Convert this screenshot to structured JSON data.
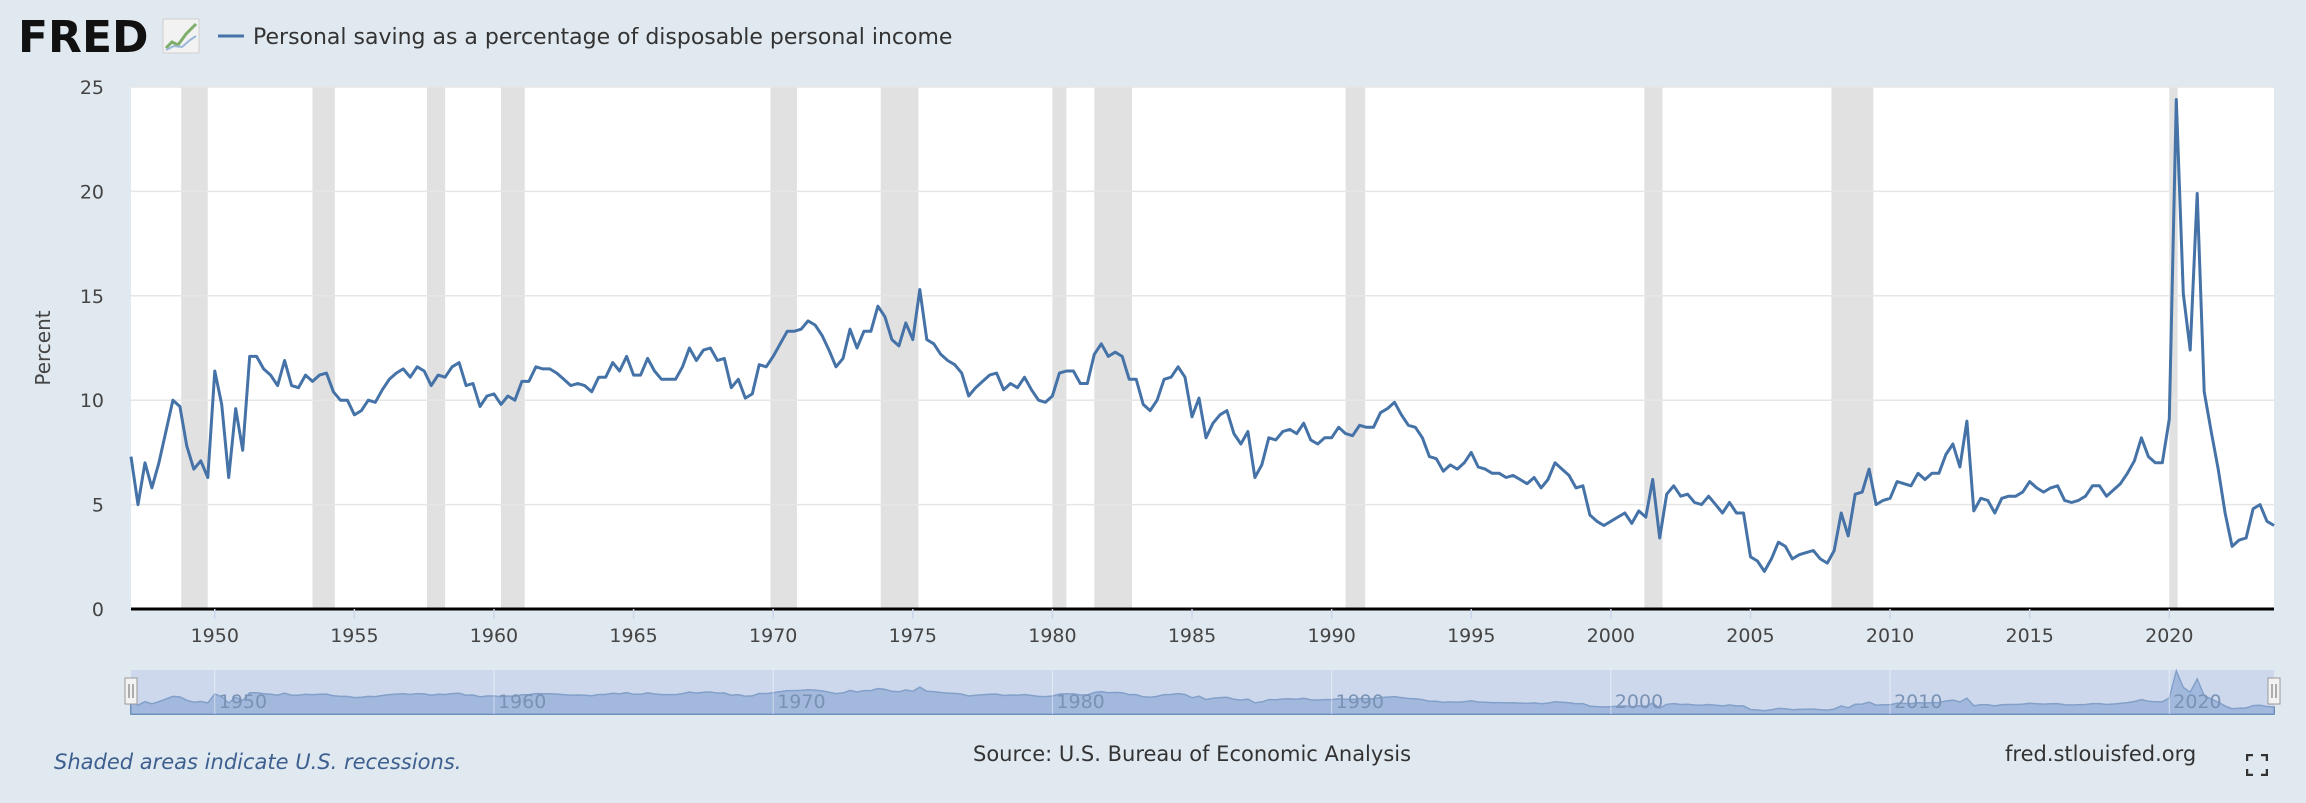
{
  "header": {
    "logo_text": "FRED",
    "logo_icon": "fred-graph-icon",
    "legend_label": "Personal saving as a percentage of disposable personal income"
  },
  "footer": {
    "recession_note": "Shaded areas indicate U.S. recessions.",
    "source": "Source: U.S. Bureau of Economic Analysis",
    "site": "fred.stlouisfed.org",
    "fullscreen_icon": "fullscreen-icon"
  },
  "colors": {
    "series": "#4572a7",
    "recession": "#e1e1e1",
    "background": "#e1e9f0",
    "plot_bg": "#ffffff",
    "navigator": "#b7c7e6"
  },
  "chart_data": {
    "type": "line",
    "title": "",
    "xlabel": "",
    "ylabel": "Percent",
    "ylim": [
      0,
      25
    ],
    "yticks": [
      "0",
      "5",
      "10",
      "15",
      "20",
      "25"
    ],
    "xlim": [
      1947.0,
      2023.75
    ],
    "xticks": [
      "1950",
      "1955",
      "1960",
      "1965",
      "1970",
      "1975",
      "1980",
      "1985",
      "1990",
      "1995",
      "2000",
      "2005",
      "2010",
      "2015",
      "2020"
    ],
    "navigator_ticks": [
      "1950",
      "1960",
      "1970",
      "1980",
      "1990",
      "2000",
      "2010",
      "2020"
    ],
    "grid": true,
    "legend": "top-left",
    "recessions": [
      [
        1948.8,
        1949.75
      ],
      [
        1953.5,
        1954.3
      ],
      [
        1957.6,
        1958.25
      ],
      [
        1960.25,
        1961.1
      ],
      [
        1969.9,
        1970.85
      ],
      [
        1973.85,
        1975.2
      ],
      [
        1980.0,
        1980.5
      ],
      [
        1981.5,
        1982.85
      ],
      [
        1990.5,
        1991.2
      ],
      [
        2001.2,
        2001.85
      ],
      [
        2007.9,
        2009.4
      ],
      [
        2020.0,
        2020.3
      ]
    ],
    "series": [
      {
        "name": "Personal saving as a percentage of disposable personal income",
        "x": [
          1947.0,
          1947.25,
          1947.5,
          1947.75,
          1948.0,
          1948.25,
          1948.5,
          1948.75,
          1949.0,
          1949.25,
          1949.5,
          1949.75,
          1950.0,
          1950.25,
          1950.5,
          1950.75,
          1951.0,
          1951.25,
          1951.5,
          1951.75,
          1952.0,
          1952.25,
          1952.5,
          1952.75,
          1953.0,
          1953.25,
          1953.5,
          1953.75,
          1954.0,
          1954.25,
          1954.5,
          1954.75,
          1955.0,
          1955.25,
          1955.5,
          1955.75,
          1956.0,
          1956.25,
          1956.5,
          1956.75,
          1957.0,
          1957.25,
          1957.5,
          1957.75,
          1958.0,
          1958.25,
          1958.5,
          1958.75,
          1959.0,
          1959.25,
          1959.5,
          1959.75,
          1960.0,
          1960.25,
          1960.5,
          1960.75,
          1961.0,
          1961.25,
          1961.5,
          1961.75,
          1962.0,
          1962.25,
          1962.5,
          1962.75,
          1963.0,
          1963.25,
          1963.5,
          1963.75,
          1964.0,
          1964.25,
          1964.5,
          1964.75,
          1965.0,
          1965.25,
          1965.5,
          1965.75,
          1966.0,
          1966.25,
          1966.5,
          1966.75,
          1967.0,
          1967.25,
          1967.5,
          1967.75,
          1968.0,
          1968.25,
          1968.5,
          1968.75,
          1969.0,
          1969.25,
          1969.5,
          1969.75,
          1970.0,
          1970.25,
          1970.5,
          1970.75,
          1971.0,
          1971.25,
          1971.5,
          1971.75,
          1972.0,
          1972.25,
          1972.5,
          1972.75,
          1973.0,
          1973.25,
          1973.5,
          1973.75,
          1974.0,
          1974.25,
          1974.5,
          1974.75,
          1975.0,
          1975.25,
          1975.5,
          1975.75,
          1976.0,
          1976.25,
          1976.5,
          1976.75,
          1977.0,
          1977.25,
          1977.5,
          1977.75,
          1978.0,
          1978.25,
          1978.5,
          1978.75,
          1979.0,
          1979.25,
          1979.5,
          1979.75,
          1980.0,
          1980.25,
          1980.5,
          1980.75,
          1981.0,
          1981.25,
          1981.5,
          1981.75,
          1982.0,
          1982.25,
          1982.5,
          1982.75,
          1983.0,
          1983.25,
          1983.5,
          1983.75,
          1984.0,
          1984.25,
          1984.5,
          1984.75,
          1985.0,
          1985.25,
          1985.5,
          1985.75,
          1986.0,
          1986.25,
          1986.5,
          1986.75,
          1987.0,
          1987.25,
          1987.5,
          1987.75,
          1988.0,
          1988.25,
          1988.5,
          1988.75,
          1989.0,
          1989.25,
          1989.5,
          1989.75,
          1990.0,
          1990.25,
          1990.5,
          1990.75,
          1991.0,
          1991.25,
          1991.5,
          1991.75,
          1992.0,
          1992.25,
          1992.5,
          1992.75,
          1993.0,
          1993.25,
          1993.5,
          1993.75,
          1994.0,
          1994.25,
          1994.5,
          1994.75,
          1995.0,
          1995.25,
          1995.5,
          1995.75,
          1996.0,
          1996.25,
          1996.5,
          1996.75,
          1997.0,
          1997.25,
          1997.5,
          1997.75,
          1998.0,
          1998.25,
          1998.5,
          1998.75,
          1999.0,
          1999.25,
          1999.5,
          1999.75,
          2000.0,
          2000.25,
          2000.5,
          2000.75,
          2001.0,
          2001.25,
          2001.5,
          2001.75,
          2002.0,
          2002.25,
          2002.5,
          2002.75,
          2003.0,
          2003.25,
          2003.5,
          2003.75,
          2004.0,
          2004.25,
          2004.5,
          2004.75,
          2005.0,
          2005.25,
          2005.5,
          2005.75,
          2006.0,
          2006.25,
          2006.5,
          2006.75,
          2007.0,
          2007.25,
          2007.5,
          2007.75,
          2008.0,
          2008.25,
          2008.5,
          2008.75,
          2009.0,
          2009.25,
          2009.5,
          2009.75,
          2010.0,
          2010.25,
          2010.5,
          2010.75,
          2011.0,
          2011.25,
          2011.5,
          2011.75,
          2012.0,
          2012.25,
          2012.5,
          2012.75,
          2013.0,
          2013.25,
          2013.5,
          2013.75,
          2014.0,
          2014.25,
          2014.5,
          2014.75,
          2015.0,
          2015.25,
          2015.5,
          2015.75,
          2016.0,
          2016.25,
          2016.5,
          2016.75,
          2017.0,
          2017.25,
          2017.5,
          2017.75,
          2018.0,
          2018.25,
          2018.5,
          2018.75,
          2019.0,
          2019.25,
          2019.5,
          2019.75,
          2020.0,
          2020.25,
          2020.5,
          2020.75,
          2021.0,
          2021.25,
          2021.5,
          2021.75,
          2022.0,
          2022.25,
          2022.5,
          2022.75,
          2023.0,
          2023.25,
          2023.5,
          2023.75
        ],
        "values": [
          7.3,
          5.0,
          7.0,
          5.8,
          7.0,
          8.5,
          10.0,
          9.7,
          7.8,
          6.7,
          7.1,
          6.3,
          11.4,
          9.8,
          6.3,
          9.6,
          7.6,
          12.1,
          12.1,
          11.5,
          11.2,
          10.7,
          11.9,
          10.7,
          10.6,
          11.2,
          10.9,
          11.2,
          11.3,
          10.4,
          10.0,
          10.0,
          9.3,
          9.5,
          10.0,
          9.9,
          10.5,
          11.0,
          11.3,
          11.5,
          11.1,
          11.6,
          11.4,
          10.7,
          11.2,
          11.1,
          11.6,
          11.8,
          10.7,
          10.8,
          9.7,
          10.2,
          10.3,
          9.8,
          10.2,
          10.0,
          10.9,
          10.9,
          11.6,
          11.5,
          11.5,
          11.3,
          11.0,
          10.7,
          10.8,
          10.7,
          10.4,
          11.1,
          11.1,
          11.8,
          11.4,
          12.1,
          11.2,
          11.2,
          12.0,
          11.4,
          11.0,
          11.0,
          11.0,
          11.6,
          12.5,
          11.9,
          12.4,
          12.5,
          11.9,
          12.0,
          10.6,
          11.0,
          10.1,
          10.3,
          11.7,
          11.6,
          12.1,
          12.7,
          13.3,
          13.3,
          13.4,
          13.8,
          13.6,
          13.1,
          12.4,
          11.6,
          12.0,
          13.4,
          12.5,
          13.3,
          13.3,
          14.5,
          14.0,
          12.9,
          12.6,
          13.7,
          12.9,
          15.3,
          12.9,
          12.7,
          12.2,
          11.9,
          11.7,
          11.3,
          10.2,
          10.6,
          10.9,
          11.2,
          11.3,
          10.5,
          10.8,
          10.6,
          11.1,
          10.5,
          10.0,
          9.9,
          10.2,
          11.3,
          11.4,
          11.4,
          10.8,
          10.8,
          12.2,
          12.7,
          12.1,
          12.3,
          12.1,
          11.0,
          11.0,
          9.8,
          9.5,
          10.0,
          11.0,
          11.1,
          11.6,
          11.1,
          9.2,
          10.1,
          8.2,
          8.9,
          9.3,
          9.5,
          8.4,
          7.9,
          8.5,
          6.3,
          6.9,
          8.2,
          8.1,
          8.5,
          8.6,
          8.4,
          8.9,
          8.1,
          7.9,
          8.2,
          8.2,
          8.7,
          8.4,
          8.3,
          8.8,
          8.7,
          8.7,
          9.4,
          9.6,
          9.9,
          9.3,
          8.8,
          8.7,
          8.2,
          7.3,
          7.2,
          6.6,
          6.9,
          6.7,
          7.0,
          7.5,
          6.8,
          6.7,
          6.5,
          6.5,
          6.3,
          6.4,
          6.2,
          6.0,
          6.3,
          5.8,
          6.2,
          7.0,
          6.7,
          6.4,
          5.8,
          5.9,
          4.5,
          4.2,
          4.0,
          4.2,
          4.4,
          4.6,
          4.1,
          4.7,
          4.4,
          6.2,
          3.4,
          5.5,
          5.9,
          5.4,
          5.5,
          5.1,
          5.0,
          5.4,
          5.0,
          4.6,
          5.1,
          4.6,
          4.6,
          2.5,
          2.3,
          1.8,
          2.4,
          3.2,
          3.0,
          2.4,
          2.6,
          2.7,
          2.8,
          2.4,
          2.2,
          2.8,
          4.6,
          3.5,
          5.5,
          5.6,
          6.7,
          5.0,
          5.2,
          5.3,
          6.1,
          6.0,
          5.9,
          6.5,
          6.2,
          6.5,
          6.5,
          7.4,
          7.9,
          6.8,
          9.0,
          4.7,
          5.3,
          5.2,
          4.6,
          5.3,
          5.4,
          5.4,
          5.6,
          6.1,
          5.8,
          5.6,
          5.8,
          5.9,
          5.2,
          5.1,
          5.2,
          5.4,
          5.9,
          5.9,
          5.4,
          5.7,
          6.0,
          6.5,
          7.1,
          8.2,
          7.3,
          7.0,
          7.0,
          9.1,
          24.4,
          15.1,
          12.4,
          19.9,
          10.4,
          8.5,
          6.7,
          4.6,
          3.0,
          3.3,
          3.4,
          4.8,
          5.0,
          4.2,
          4.0
        ]
      }
    ]
  }
}
